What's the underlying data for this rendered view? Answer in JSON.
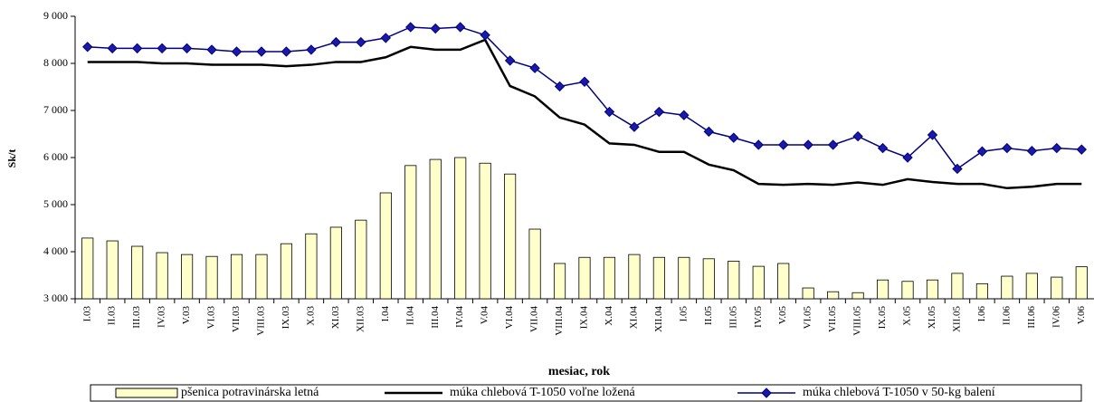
{
  "chart_data": {
    "type": "combo",
    "ylabel": "Sk/t",
    "xlabel": "mesiac, rok",
    "categories": [
      "I.03",
      "II.03",
      "III.03",
      "IV.03",
      "V.03",
      "VI.03",
      "VII.03",
      "VIII.03",
      "IX.03",
      "X.03",
      "XI.03",
      "XII.03",
      "I.04",
      "II.04",
      "III.04",
      "IV.04",
      "V.04",
      "VI.04",
      "VII.04",
      "VIII.04",
      "IX.04",
      "X.04",
      "XI.04",
      "XII.04",
      "I.05",
      "II.05",
      "III.05",
      "IV.05",
      "V.05",
      "VI.05",
      "VII.05",
      "VIII.05",
      "IX.05",
      "X.05",
      "XI.05",
      "XII.05",
      "I.06",
      "II.06",
      "III.06",
      "IV.06",
      "V.06"
    ],
    "ylim": [
      3000,
      9000
    ],
    "yticks": [
      {
        "value": 3000,
        "label": "3 000"
      },
      {
        "value": 4000,
        "label": "4 000"
      },
      {
        "value": 5000,
        "label": "5 000"
      },
      {
        "value": 6000,
        "label": "6 000"
      },
      {
        "value": 7000,
        "label": "7 000"
      },
      {
        "value": 8000,
        "label": "8 000"
      },
      {
        "value": 9000,
        "label": "9 000"
      }
    ],
    "legend": "bottom",
    "series": [
      {
        "name": "pšenica potravinárska letná",
        "type": "bar",
        "color": "#ffffcc",
        "values": [
          4290,
          4230,
          4115,
          3980,
          3940,
          3900,
          3940,
          3940,
          4170,
          4380,
          4520,
          4670,
          5250,
          5830,
          5960,
          6000,
          5880,
          5650,
          4480,
          3750,
          3880,
          3880,
          3940,
          3880,
          3880,
          3850,
          3800,
          3690,
          3750,
          3230,
          3150,
          3130,
          3400,
          3370,
          3400,
          3540,
          3320,
          3480,
          3540,
          3460,
          3680
        ]
      },
      {
        "name": "múka chlebová T-1050 voľne ložená",
        "type": "line",
        "color": "#000000",
        "values": [
          8030,
          8030,
          8030,
          8000,
          8000,
          7970,
          7970,
          7970,
          7940,
          7970,
          8030,
          8030,
          8130,
          8350,
          8290,
          8290,
          8500,
          7520,
          7300,
          6850,
          6700,
          6300,
          6270,
          6120,
          6120,
          5850,
          5730,
          5440,
          5420,
          5440,
          5420,
          5470,
          5420,
          5540,
          5480,
          5440,
          5440,
          5350,
          5380,
          5440,
          5440
        ]
      },
      {
        "name": "múka chlebová T-1050 v 50-kg balení",
        "type": "line",
        "color": "#000080",
        "marker": "diamond",
        "values": [
          8350,
          8320,
          8320,
          8320,
          8320,
          8290,
          8250,
          8250,
          8250,
          8290,
          8450,
          8450,
          8540,
          8770,
          8740,
          8770,
          8600,
          8060,
          7900,
          7510,
          7610,
          6970,
          6650,
          6970,
          6900,
          6550,
          6420,
          6270,
          6270,
          6270,
          6270,
          6450,
          6200,
          6000,
          6480,
          5760,
          6130,
          6200,
          6140,
          6200,
          6170
        ]
      }
    ]
  }
}
